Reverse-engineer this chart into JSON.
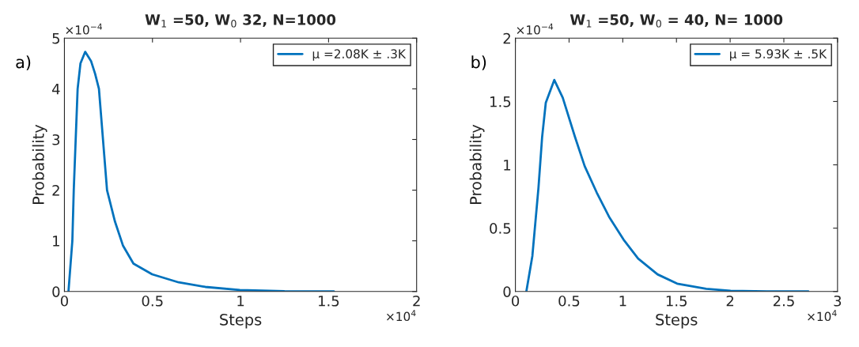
{
  "chart_data": [
    {
      "type": "line",
      "title": "W$_{1}$ =50, W$_{0}$ 32, N=1000",
      "xlabel": "Steps",
      "ylabel": "Probability",
      "xlim": [
        0,
        2
      ],
      "xticks": [
        0,
        0.5,
        1,
        1.5,
        2
      ],
      "ylim": [
        0,
        5
      ],
      "yticks": [
        0,
        1,
        2,
        3,
        4,
        5
      ],
      "grid": false,
      "legend": "top right",
      "annotations": [
        "a)",
        "×10$^{4}$",
        "×10$^{−4}$"
      ],
      "series": [
        {
          "name": "μ =2.08K ± .3K",
          "color": "#0072bd",
          "x": [
            0.023,
            0.045,
            0.053,
            0.075,
            0.091,
            0.118,
            0.151,
            0.174,
            0.196,
            0.242,
            0.287,
            0.332,
            0.392,
            0.498,
            0.649,
            0.8,
            0.996,
            1.25,
            1.53
          ],
          "values": [
            0,
            1.0,
            2.0,
            4.0,
            4.5,
            4.73,
            4.55,
            4.3,
            4.0,
            2.0,
            1.38,
            0.91,
            0.55,
            0.34,
            0.18,
            0.09,
            0.03,
            0.005,
            0
          ]
        }
      ]
    },
    {
      "type": "line",
      "title": "W$_{1}$ =50, W$_{0}$ = 40, N= 1000",
      "xlabel": "Steps",
      "ylabel": "Probability",
      "xlim": [
        0,
        3
      ],
      "xticks": [
        0,
        0.5,
        1,
        1.5,
        2,
        2.5,
        3
      ],
      "ylim": [
        0,
        2
      ],
      "yticks": [
        0,
        0.5,
        1,
        1.5,
        2
      ],
      "grid": false,
      "legend": "top right",
      "annotations": [
        "b)",
        "×10$^{4}$",
        "×10$^{−4}$"
      ],
      "series": [
        {
          "name": "μ = 5.93K ± .5K",
          "color": "#0072bd",
          "x": [
            0.102,
            0.158,
            0.215,
            0.249,
            0.283,
            0.362,
            0.441,
            0.555,
            0.645,
            0.758,
            0.872,
            1.007,
            1.143,
            1.324,
            1.506,
            1.777,
            2.004,
            2.343,
            2.728
          ],
          "values": [
            0,
            0.28,
            0.82,
            1.22,
            1.49,
            1.67,
            1.53,
            1.22,
            0.99,
            0.78,
            0.59,
            0.41,
            0.26,
            0.135,
            0.062,
            0.021,
            0.006,
            0,
            0
          ]
        }
      ]
    }
  ]
}
